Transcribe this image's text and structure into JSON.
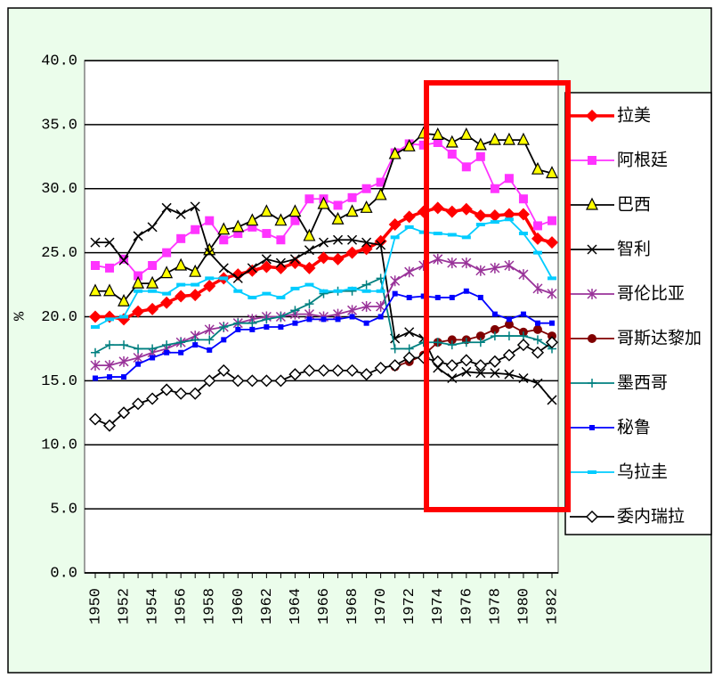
{
  "chart_data": {
    "type": "line",
    "y_label": "%",
    "categories": [
      "1950",
      null,
      "1952",
      null,
      "1954",
      null,
      "1956",
      null,
      "1958",
      null,
      "1960",
      null,
      "1962",
      null,
      "1964",
      null,
      "1966",
      null,
      "1968",
      null,
      "1970",
      null,
      "1972",
      null,
      "1974",
      null,
      "1976",
      null,
      "1978",
      null,
      "1980",
      null,
      "1982"
    ],
    "ylim": [
      0,
      40
    ],
    "yticks": [
      {
        "value": 0,
        "label": "0.0"
      },
      {
        "value": 5,
        "label": "5.0"
      },
      {
        "value": 10,
        "label": "10.0"
      },
      {
        "value": 15,
        "label": "15.0"
      },
      {
        "value": 20,
        "label": "20.0"
      },
      {
        "value": 25,
        "label": "25.0"
      },
      {
        "value": 30,
        "label": "30.0"
      },
      {
        "value": 35,
        "label": "35.0"
      },
      {
        "value": 40,
        "label": "40.0"
      }
    ],
    "grid": true,
    "legend": "right",
    "series": [
      {
        "name": "拉美",
        "color": "#ff0000",
        "marker": "diamond",
        "values": [
          20.0,
          20.0,
          19.8,
          20.4,
          20.6,
          21.1,
          21.6,
          21.7,
          22.4,
          23.0,
          23.3,
          23.6,
          23.9,
          23.8,
          24.2,
          23.8,
          24.6,
          24.5,
          25.0,
          25.3,
          25.9,
          27.2,
          27.8,
          28.2,
          28.5,
          28.2,
          28.4,
          27.9,
          27.9,
          28.0,
          28.0,
          26.1,
          25.8
        ]
      },
      {
        "name": "阿根廷",
        "color": "#ff33ff",
        "marker": "square",
        "values": [
          24.0,
          23.8,
          24.5,
          23.2,
          24.0,
          25.0,
          26.1,
          26.8,
          27.5,
          26.0,
          26.5,
          27.0,
          26.5,
          26.0,
          27.5,
          29.2,
          29.2,
          28.7,
          29.3,
          30.0,
          30.5,
          32.8,
          33.5,
          33.4,
          33.6,
          32.7,
          31.7,
          32.5,
          30.0,
          30.8,
          29.2,
          27.1,
          27.5
        ]
      },
      {
        "name": "巴西",
        "color": "#000000",
        "marker": "triangle",
        "values": [
          22.0,
          22.0,
          21.2,
          22.6,
          22.6,
          23.4,
          24.0,
          23.5,
          25.2,
          26.8,
          27.0,
          27.5,
          28.2,
          27.5,
          28.2,
          26.3,
          28.8,
          27.6,
          28.2,
          28.5,
          29.5,
          32.7,
          33.3,
          34.3,
          34.2,
          33.6,
          34.2,
          33.4,
          33.8,
          33.8,
          33.8,
          31.5,
          31.2
        ]
      },
      {
        "name": "智利",
        "color": "#000000",
        "marker": "x",
        "values": [
          25.8,
          25.8,
          24.4,
          26.3,
          27.0,
          28.5,
          28.0,
          28.6,
          25.0,
          23.8,
          23.0,
          23.8,
          24.5,
          24.2,
          24.5,
          25.2,
          25.8,
          26.0,
          26.0,
          25.8,
          25.6,
          18.3,
          18.8,
          18.3,
          16.0,
          15.2,
          15.7,
          15.6,
          15.6,
          15.5,
          15.2,
          14.8,
          13.5
        ]
      },
      {
        "name": "哥伦比亚",
        "color": "#993399",
        "marker": "asterisk",
        "values": [
          16.2,
          16.2,
          16.5,
          16.8,
          17.2,
          17.5,
          18.0,
          18.5,
          19.0,
          19.2,
          19.5,
          19.8,
          20.0,
          20.0,
          20.2,
          20.2,
          20.0,
          20.2,
          20.5,
          20.8,
          20.8,
          22.8,
          23.5,
          24.0,
          24.5,
          24.2,
          24.2,
          23.6,
          23.8,
          24.0,
          23.3,
          22.2,
          21.8
        ]
      },
      {
        "name": "哥斯达黎加",
        "color": "#800000",
        "marker": "circle",
        "values": [
          null,
          null,
          null,
          null,
          null,
          null,
          null,
          null,
          null,
          null,
          null,
          null,
          null,
          null,
          null,
          null,
          null,
          null,
          null,
          null,
          null,
          16.1,
          16.5,
          17.0,
          18.0,
          18.2,
          18.2,
          18.5,
          19.0,
          19.4,
          18.8,
          19.0,
          18.5
        ]
      },
      {
        "name": "墨西哥",
        "color": "#008080",
        "marker": "plus",
        "values": [
          17.2,
          17.8,
          17.8,
          17.5,
          17.5,
          17.8,
          18.0,
          18.2,
          18.2,
          19.2,
          19.5,
          19.5,
          19.8,
          20.0,
          20.5,
          21.0,
          21.8,
          22.0,
          22.0,
          22.5,
          23.0,
          17.5,
          17.5,
          18.0,
          18.0,
          17.8,
          18.0,
          18.0,
          18.5,
          18.5,
          18.5,
          18.2,
          17.5
        ]
      },
      {
        "name": "秘鲁",
        "color": "#0000ff",
        "marker": "smallsquare",
        "values": [
          15.2,
          15.3,
          15.3,
          16.3,
          16.8,
          17.2,
          17.2,
          17.8,
          17.4,
          18.2,
          19.0,
          19.0,
          19.2,
          19.2,
          19.5,
          19.8,
          19.8,
          19.8,
          20.0,
          19.5,
          20.0,
          21.8,
          21.5,
          21.6,
          21.5,
          21.5,
          22.0,
          21.5,
          20.2,
          19.8,
          20.2,
          19.5,
          19.5
        ]
      },
      {
        "name": "乌拉圭",
        "color": "#00ccff",
        "marker": "dash",
        "values": [
          19.2,
          19.8,
          20.0,
          22.0,
          22.0,
          21.8,
          22.5,
          22.5,
          23.0,
          23.0,
          22.0,
          21.5,
          21.8,
          21.5,
          22.2,
          22.5,
          22.0,
          22.0,
          22.2,
          22.0,
          22.0,
          26.2,
          27.0,
          26.6,
          26.5,
          26.4,
          26.2,
          27.2,
          27.4,
          27.6,
          26.5,
          25.0,
          23.0
        ]
      },
      {
        "name": "委内瑞拉",
        "color": "#000000",
        "marker": "opendiamond",
        "values": [
          12.0,
          11.5,
          12.5,
          13.2,
          13.6,
          14.3,
          14.0,
          14.0,
          15.0,
          15.8,
          15.0,
          15.0,
          15.0,
          15.0,
          15.5,
          15.8,
          15.8,
          15.8,
          15.8,
          15.5,
          16.0,
          16.2,
          16.8,
          16.8,
          16.5,
          16.2,
          16.6,
          16.2,
          16.5,
          17.0,
          17.8,
          17.2,
          18.0
        ]
      }
    ]
  }
}
